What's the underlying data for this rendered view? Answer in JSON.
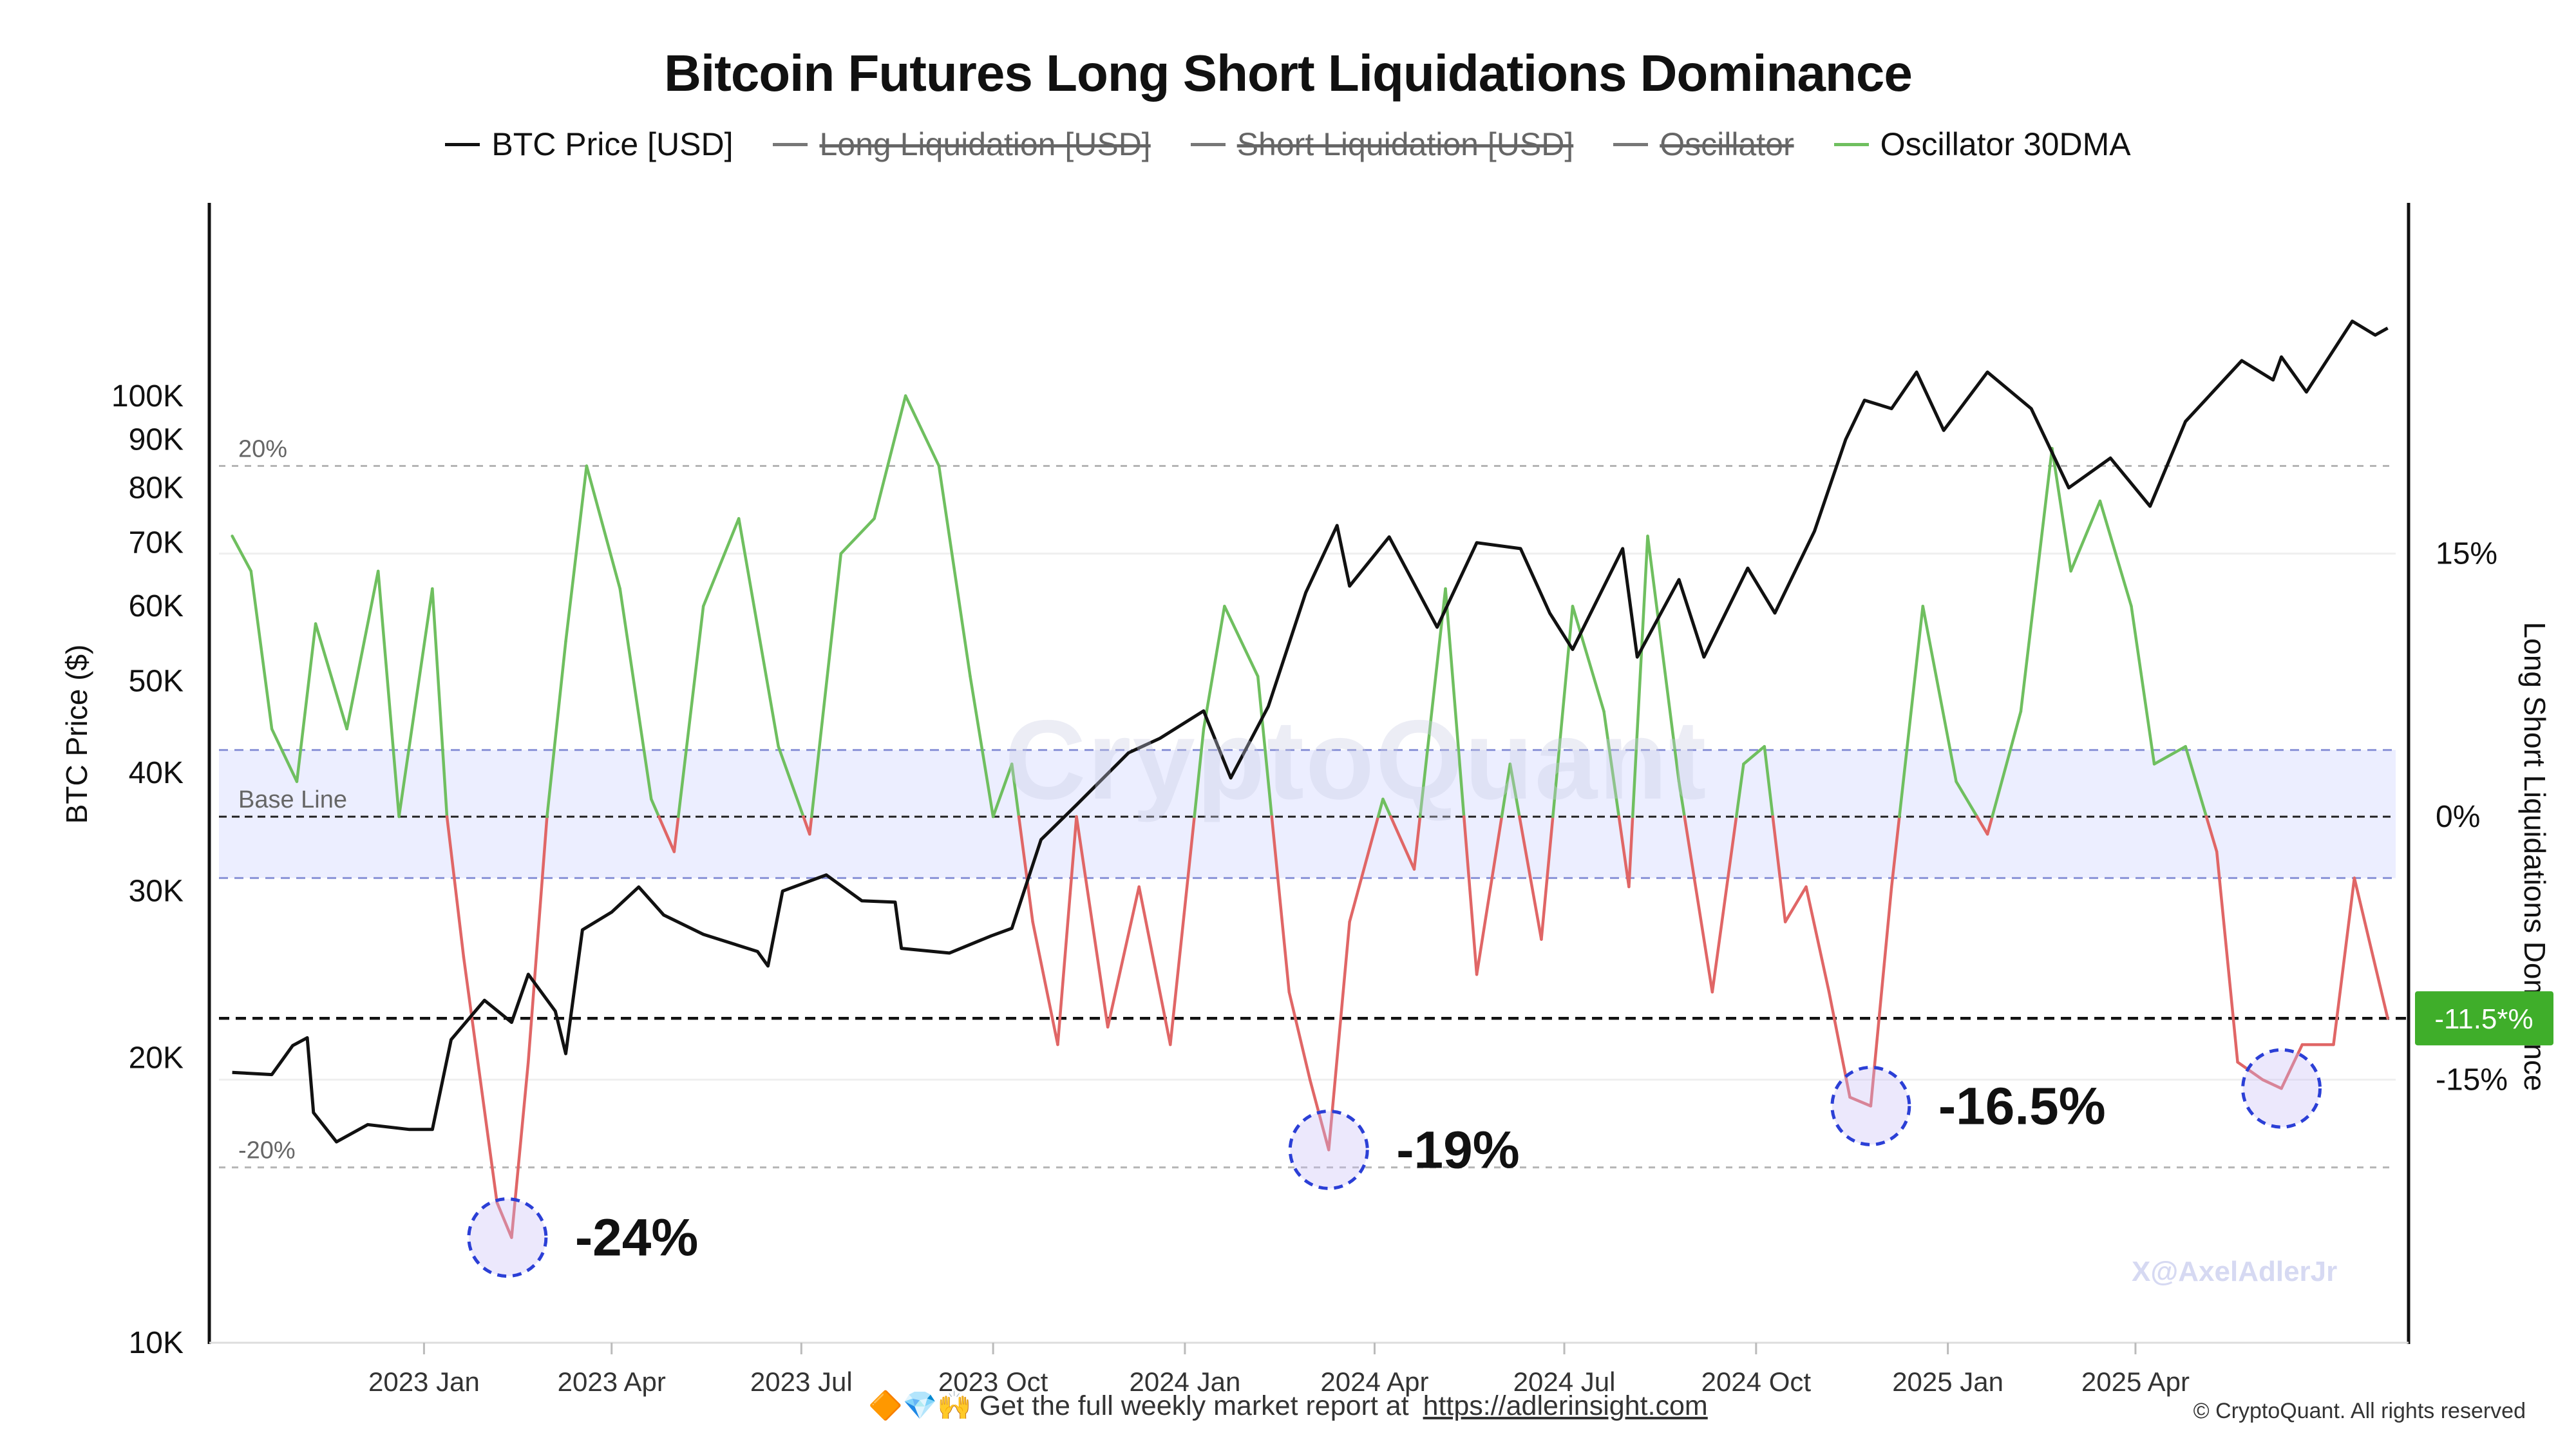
{
  "title": "Bitcoin Futures Long Short Liquidations Dominance",
  "legend": [
    {
      "label": "BTC Price [USD]",
      "color": "#111111",
      "active": true
    },
    {
      "label": "Long Liquidation [USD]",
      "color": "#777777",
      "active": false
    },
    {
      "label": "Short Liquidation [USD]",
      "color": "#777777",
      "active": false
    },
    {
      "label": "Oscillator",
      "color": "#777777",
      "active": false
    },
    {
      "label": "Oscillator 30DMA",
      "color": "#6fbf5f",
      "active": true
    }
  ],
  "colors": {
    "positive": "#6fbf5f",
    "negative": "#e06666",
    "price": "#111111",
    "band": "#eceeff",
    "badge": "#3fae2a",
    "circle": "#2b3fd6"
  },
  "watermark": "CryptoQuant",
  "handle": "X@AxelAdlerJr",
  "footer": {
    "emoji": "🔶💎🙌",
    "text": "Get the full weekly market report at",
    "link": "https://adlerinsight.com"
  },
  "copyright": "© CryptoQuant. All rights reserved",
  "chart_data": {
    "type": "line",
    "x_ticks": [
      "2023 Jan",
      "2023 Apr",
      "2023 Jul",
      "2023 Oct",
      "2024 Jan",
      "2024 Apr",
      "2024 Jul",
      "2024 Oct",
      "2025 Jan",
      "2025 Apr"
    ],
    "left_axis": {
      "label": "BTC Price ($)",
      "scale": "log",
      "range": [
        10000,
        160000
      ],
      "ticks": [
        "10K",
        "20K",
        "30K",
        "40K",
        "50K",
        "60K",
        "70K",
        "80K",
        "90K",
        "100K"
      ]
    },
    "right_axis": {
      "label": "Long Short Liquidations Dominance",
      "range": [
        -30,
        35
      ],
      "ticks": [
        "15%",
        "0%",
        "-15%"
      ]
    },
    "reference_lines": [
      {
        "label": "20%",
        "value": 20
      },
      {
        "label": "Base Line",
        "value": 0
      },
      {
        "label": "-20%",
        "value": -20
      }
    ],
    "current_value_badge": "-11.5*%",
    "current_value": -11.5,
    "band": [
      -3.5,
      3.8
    ],
    "annotations": [
      {
        "text": "-24%",
        "date": "2023-02-10",
        "value": -24
      },
      {
        "text": "-19%",
        "date": "2024-03-10",
        "value": -19
      },
      {
        "text": "-16.5%",
        "date": "2024-11-25",
        "value": -16.5
      },
      {
        "text": "",
        "date": "2025-06-10",
        "value": -15.5
      }
    ],
    "series": [
      {
        "name": "BTC Price [USD]",
        "axis": "left",
        "points": [
          [
            "2022-10-01",
            19300
          ],
          [
            "2022-10-20",
            19200
          ],
          [
            "2022-10-30",
            20600
          ],
          [
            "2022-11-06",
            21000
          ],
          [
            "2022-11-09",
            17500
          ],
          [
            "2022-11-20",
            16300
          ],
          [
            "2022-12-05",
            17000
          ],
          [
            "2022-12-25",
            16800
          ],
          [
            "2023-01-05",
            16800
          ],
          [
            "2023-01-14",
            20900
          ],
          [
            "2023-01-30",
            23000
          ],
          [
            "2023-02-12",
            21800
          ],
          [
            "2023-02-20",
            24500
          ],
          [
            "2023-03-05",
            22400
          ],
          [
            "2023-03-10",
            20200
          ],
          [
            "2023-03-18",
            27300
          ],
          [
            "2023-04-01",
            28500
          ],
          [
            "2023-04-14",
            30300
          ],
          [
            "2023-04-26",
            28300
          ],
          [
            "2023-05-15",
            27000
          ],
          [
            "2023-06-10",
            25900
          ],
          [
            "2023-06-15",
            25000
          ],
          [
            "2023-06-22",
            30000
          ],
          [
            "2023-07-13",
            31200
          ],
          [
            "2023-07-30",
            29300
          ],
          [
            "2023-08-15",
            29200
          ],
          [
            "2023-08-18",
            26100
          ],
          [
            "2023-09-10",
            25800
          ],
          [
            "2023-09-30",
            26900
          ],
          [
            "2023-10-10",
            27400
          ],
          [
            "2023-10-24",
            34000
          ],
          [
            "2023-11-10",
            37000
          ],
          [
            "2023-12-05",
            42000
          ],
          [
            "2023-12-20",
            43500
          ],
          [
            "2024-01-10",
            46500
          ],
          [
            "2024-01-23",
            39500
          ],
          [
            "2024-02-10",
            47000
          ],
          [
            "2024-02-28",
            62000
          ],
          [
            "2024-03-14",
            73000
          ],
          [
            "2024-03-20",
            63000
          ],
          [
            "2024-04-08",
            71000
          ],
          [
            "2024-05-01",
            57000
          ],
          [
            "2024-05-20",
            70000
          ],
          [
            "2024-06-10",
            69000
          ],
          [
            "2024-06-24",
            59000
          ],
          [
            "2024-07-05",
            54000
          ],
          [
            "2024-07-29",
            69000
          ],
          [
            "2024-08-05",
            53000
          ],
          [
            "2024-08-25",
            64000
          ],
          [
            "2024-09-06",
            53000
          ],
          [
            "2024-09-27",
            65800
          ],
          [
            "2024-10-10",
            59000
          ],
          [
            "2024-10-29",
            72000
          ],
          [
            "2024-11-13",
            90000
          ],
          [
            "2024-11-22",
            99000
          ],
          [
            "2024-12-05",
            97000
          ],
          [
            "2024-12-17",
            106000
          ],
          [
            "2024-12-30",
            92000
          ],
          [
            "2025-01-20",
            106000
          ],
          [
            "2025-02-10",
            97000
          ],
          [
            "2025-02-28",
            80000
          ],
          [
            "2025-03-20",
            86000
          ],
          [
            "2025-04-08",
            76500
          ],
          [
            "2025-04-25",
            94000
          ],
          [
            "2025-05-22",
            109000
          ],
          [
            "2025-06-06",
            104000
          ],
          [
            "2025-06-10",
            110000
          ],
          [
            "2025-06-22",
            101000
          ],
          [
            "2025-07-14",
            120000
          ],
          [
            "2025-07-25",
            116000
          ],
          [
            "2025-07-31",
            118000
          ]
        ]
      },
      {
        "name": "Oscillator 30DMA",
        "axis": "right",
        "points": [
          [
            "2022-10-01",
            16
          ],
          [
            "2022-10-10",
            14
          ],
          [
            "2022-10-20",
            5
          ],
          [
            "2022-11-01",
            2
          ],
          [
            "2022-11-10",
            11
          ],
          [
            "2022-11-25",
            5
          ],
          [
            "2022-12-10",
            14
          ],
          [
            "2022-12-20",
            0
          ],
          [
            "2023-01-05",
            13
          ],
          [
            "2023-01-12",
            0
          ],
          [
            "2023-01-20",
            -8
          ],
          [
            "2023-02-05",
            -22
          ],
          [
            "2023-02-12",
            -24
          ],
          [
            "2023-02-20",
            -14
          ],
          [
            "2023-03-01",
            0
          ],
          [
            "2023-03-10",
            10
          ],
          [
            "2023-03-20",
            20
          ],
          [
            "2023-04-05",
            13
          ],
          [
            "2023-04-20",
            1
          ],
          [
            "2023-05-01",
            -2
          ],
          [
            "2023-05-15",
            12
          ],
          [
            "2023-06-01",
            17
          ],
          [
            "2023-06-20",
            4
          ],
          [
            "2023-07-05",
            -1
          ],
          [
            "2023-07-20",
            15
          ],
          [
            "2023-08-05",
            17
          ],
          [
            "2023-08-20",
            24
          ],
          [
            "2023-09-05",
            20
          ],
          [
            "2023-09-20",
            8
          ],
          [
            "2023-10-01",
            0
          ],
          [
            "2023-10-10",
            3
          ],
          [
            "2023-10-20",
            -6
          ],
          [
            "2023-11-01",
            -13
          ],
          [
            "2023-11-10",
            0
          ],
          [
            "2023-11-25",
            -12
          ],
          [
            "2023-12-10",
            -4
          ],
          [
            "2023-12-25",
            -13
          ],
          [
            "2024-01-10",
            5
          ],
          [
            "2024-01-20",
            12
          ],
          [
            "2024-02-05",
            8
          ],
          [
            "2024-02-20",
            -10
          ],
          [
            "2024-03-01",
            -15
          ],
          [
            "2024-03-10",
            -19
          ],
          [
            "2024-03-20",
            -6
          ],
          [
            "2024-04-05",
            1
          ],
          [
            "2024-04-20",
            -3
          ],
          [
            "2024-05-05",
            13
          ],
          [
            "2024-05-20",
            -9
          ],
          [
            "2024-06-05",
            3
          ],
          [
            "2024-06-20",
            -7
          ],
          [
            "2024-07-05",
            12
          ],
          [
            "2024-07-20",
            6
          ],
          [
            "2024-08-01",
            -4
          ],
          [
            "2024-08-10",
            16
          ],
          [
            "2024-08-25",
            2
          ],
          [
            "2024-09-10",
            -10
          ],
          [
            "2024-09-25",
            3
          ],
          [
            "2024-10-05",
            4
          ],
          [
            "2024-10-15",
            -6
          ],
          [
            "2024-10-25",
            -4
          ],
          [
            "2024-11-05",
            -10
          ],
          [
            "2024-11-15",
            -16
          ],
          [
            "2024-11-25",
            -16.5
          ],
          [
            "2024-12-05",
            -4
          ],
          [
            "2024-12-20",
            12
          ],
          [
            "2025-01-05",
            2
          ],
          [
            "2025-01-20",
            -1
          ],
          [
            "2025-02-05",
            6
          ],
          [
            "2025-02-20",
            21
          ],
          [
            "2025-03-01",
            14
          ],
          [
            "2025-03-15",
            18
          ],
          [
            "2025-03-30",
            12
          ],
          [
            "2025-04-10",
            3
          ],
          [
            "2025-04-25",
            4
          ],
          [
            "2025-05-10",
            -2
          ],
          [
            "2025-05-20",
            -14
          ],
          [
            "2025-06-01",
            -15
          ],
          [
            "2025-06-10",
            -15.5
          ],
          [
            "2025-06-20",
            -13
          ],
          [
            "2025-07-05",
            -13
          ],
          [
            "2025-07-15",
            -3.5
          ],
          [
            "2025-07-31",
            -11.5
          ]
        ]
      }
    ]
  }
}
